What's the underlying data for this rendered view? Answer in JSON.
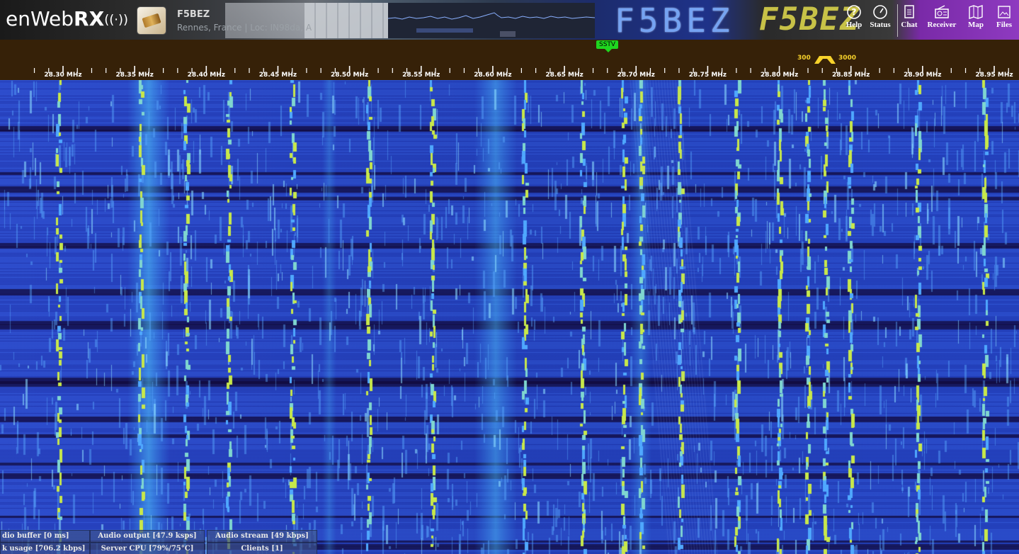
{
  "header": {
    "logo": {
      "text": "enWeb",
      "bold": "RX",
      "waves": "((·))"
    },
    "receiver": {
      "title": "F5BEZ",
      "description": "Rennes, France | Loc: IN98da, AS"
    },
    "banner": {
      "callsign_left": "F5BEZ",
      "callsign_right": "F5BEZ"
    },
    "nav": [
      {
        "id": "help",
        "label": "Help",
        "icon": "help-icon"
      },
      {
        "id": "status",
        "label": "Status",
        "icon": "gauge-icon"
      },
      {
        "id": "chat",
        "label": "Chat",
        "icon": "document-icon"
      },
      {
        "id": "receiver",
        "label": "Receiver",
        "icon": "radio-icon"
      },
      {
        "id": "map",
        "label": "Map",
        "icon": "map-icon"
      },
      {
        "id": "files",
        "label": "Files",
        "icon": "image-icon"
      }
    ]
  },
  "scale": {
    "labels": [
      "28.30 MHz",
      "28.35 MHz",
      "28.40 MHz",
      "28.45 MHz",
      "28.50 MHz",
      "28.55 MHz",
      "28.60 MHz",
      "28.65 MHz",
      "28.70 MHz",
      "28.75 MHz",
      "28.80 MHz",
      "28.85 MHz",
      "28.90 MHz",
      "28.95 MHz"
    ],
    "start_mhz": 28.28,
    "end_mhz": 28.96,
    "bookmark": {
      "label": "SSTV",
      "freq_mhz": 28.68
    },
    "passband": {
      "low_hz": "300",
      "high_hz": "3000",
      "center_mhz": 28.825
    }
  },
  "waterfall": {
    "colors": {
      "background": "#1b2f9a",
      "signal": "#3fa0ff",
      "strong": "#c8e84a",
      "dark_band": "#120c3a"
    }
  },
  "status": {
    "audio_buffer": "dio buffer [0 ms]",
    "audio_output": "Audio output [47.9 ksps]",
    "audio_stream": "Audio stream [49 kbps]",
    "network": "k usage [706.2 kbps]",
    "server_cpu": "Server CPU [79%/75°C]",
    "clients": "Clients [1]"
  }
}
